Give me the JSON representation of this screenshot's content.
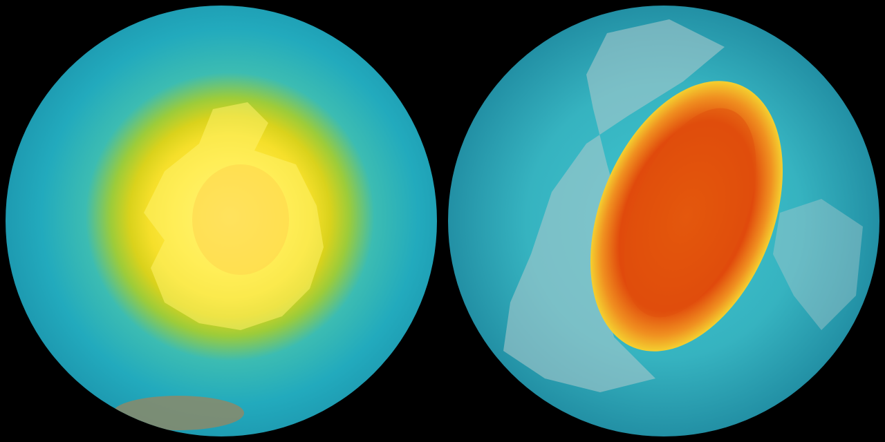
{
  "colors": {
    "background": "#000000",
    "left_core": "#ffe840",
    "left_ring": "#d9d21c",
    "ocean_teal": "#22aabd",
    "right_core": "#e0500c",
    "right_rim": "#f0c020",
    "land_gray": "#a9c8cc"
  }
}
